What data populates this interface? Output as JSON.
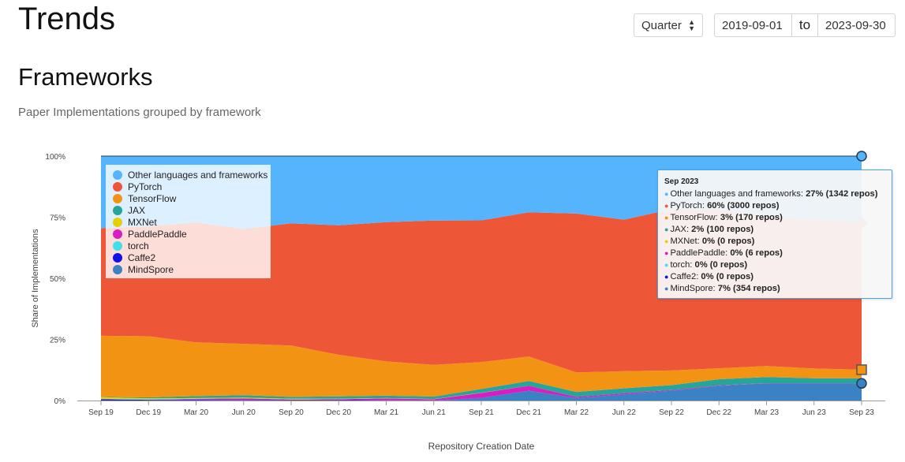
{
  "header": {
    "title": "Trends",
    "period": "Quarter",
    "date_start": "2019-09-01",
    "date_separator": "to",
    "date_end": "2023-09-30"
  },
  "section": {
    "title": "Frameworks",
    "subtitle": "Paper Implementations grouped by framework"
  },
  "chart_data": {
    "type": "area",
    "stacked": true,
    "percent": true,
    "xlabel": "Repository Creation Date",
    "ylabel": "Share of Implementations",
    "ylim": [
      0,
      100
    ],
    "yticks": [
      "0%",
      "25%",
      "50%",
      "75%",
      "100%"
    ],
    "categories": [
      "Sep 19",
      "Dec 19",
      "Mar 20",
      "Jun 20",
      "Sep 20",
      "Dec 20",
      "Mar 21",
      "Jun 21",
      "Sep 21",
      "Dec 21",
      "Mar 22",
      "Jun 22",
      "Sep 22",
      "Dec 22",
      "Mar 23",
      "Jun 23",
      "Sep 23"
    ],
    "legend_position": "top-left",
    "series": [
      {
        "name": "MindSpore",
        "color": "#3b82c4",
        "values": [
          0,
          0,
          0,
          0,
          0,
          0,
          0,
          0,
          1,
          4,
          1,
          2.5,
          4,
          6,
          7,
          7,
          7
        ]
      },
      {
        "name": "Caffe2",
        "color": "#1010e8",
        "values": [
          0.5,
          0.3,
          0.3,
          0.2,
          0.2,
          0.2,
          0.1,
          0.1,
          0.1,
          0,
          0,
          0,
          0,
          0,
          0,
          0,
          0
        ]
      },
      {
        "name": "torch",
        "color": "#40e0e8",
        "values": [
          0.1,
          0.1,
          0.1,
          0.1,
          0,
          0,
          0,
          0,
          0,
          0,
          0,
          0,
          0,
          0,
          0,
          0,
          0
        ]
      },
      {
        "name": "PaddlePaddle",
        "color": "#d81ec2",
        "values": [
          0,
          0,
          0.3,
          0.6,
          0.2,
          0.3,
          0.8,
          0.4,
          2,
          2,
          0.5,
          0.5,
          0.3,
          0.2,
          0.1,
          0.1,
          0.1
        ]
      },
      {
        "name": "MXNet",
        "color": "#e6d000",
        "values": [
          0.8,
          0.5,
          0.3,
          0.3,
          0.3,
          0.2,
          0.1,
          0.1,
          0.1,
          0,
          0,
          0,
          0,
          0,
          0,
          0,
          0
        ]
      },
      {
        "name": "JAX",
        "color": "#26a69a",
        "values": [
          0.1,
          0.4,
          0.8,
          1,
          0.8,
          1,
          1,
          1,
          1.5,
          2,
          2,
          2,
          2,
          2.5,
          2.5,
          2,
          2
        ]
      },
      {
        "name": "TensorFlow",
        "color": "#f39314",
        "values": [
          25,
          25,
          22,
          21,
          21,
          17,
          14,
          13,
          11,
          10,
          8,
          7,
          6,
          4.5,
          4.5,
          4,
          3.5
        ]
      },
      {
        "name": "PyTorch",
        "color": "#ee5638",
        "values": [
          44,
          45,
          49,
          47,
          50,
          53,
          57,
          59,
          58,
          59,
          65,
          62,
          66,
          65,
          61,
          61,
          60
        ]
      },
      {
        "name": "Other languages and frameworks",
        "color": "#56b4fc",
        "values": [
          29.5,
          28.7,
          27.2,
          29.8,
          27.5,
          28.3,
          27,
          26.4,
          26.3,
          23,
          23.5,
          26,
          21.7,
          21.8,
          24.9,
          25.9,
          27.4
        ]
      }
    ],
    "legend_order": [
      "Other languages and frameworks",
      "PyTorch",
      "TensorFlow",
      "JAX",
      "MXNet",
      "PaddlePaddle",
      "torch",
      "Caffe2",
      "MindSpore"
    ]
  },
  "tooltip": {
    "title": "Sep 2023",
    "rows": [
      {
        "label": "Other languages and frameworks: ",
        "value": "27% (1342 repos)",
        "color": "#56b4fc"
      },
      {
        "label": "PyTorch: ",
        "value": "60% (3000 repos)",
        "color": "#ee5638"
      },
      {
        "label": "TensorFlow: ",
        "value": "3% (170 repos)",
        "color": "#f39314"
      },
      {
        "label": "JAX: ",
        "value": "2% (100 repos)",
        "color": "#26a69a"
      },
      {
        "label": "MXNet: ",
        "value": "0% (0 repos)",
        "color": "#e6d000"
      },
      {
        "label": "PaddlePaddle: ",
        "value": "0% (6 repos)",
        "color": "#d81ec2"
      },
      {
        "label": "torch: ",
        "value": "0% (0 repos)",
        "color": "#40e0e8"
      },
      {
        "label": "Caffe2: ",
        "value": "0% (0 repos)",
        "color": "#1010e8"
      },
      {
        "label": "MindSpore: ",
        "value": "7% (354 repos)",
        "color": "#3b82c4"
      }
    ]
  }
}
